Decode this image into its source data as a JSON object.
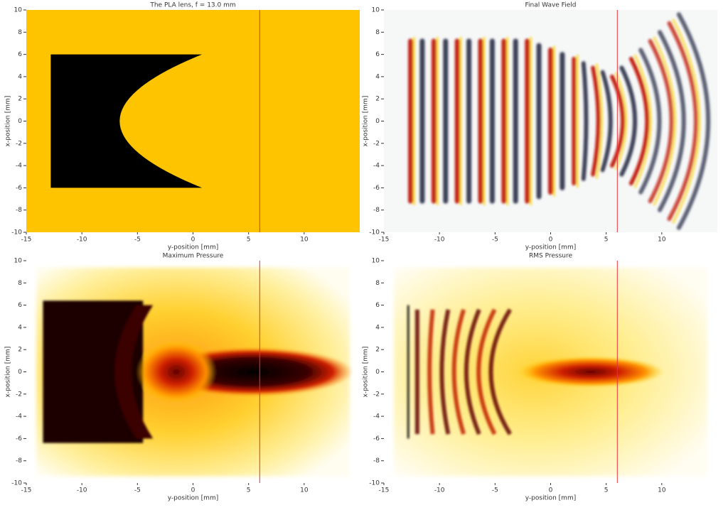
{
  "chart_data": [
    {
      "type": "heatmap",
      "title": "The PLA lens, f = 13.0 mm",
      "xlabel": "y-position [mm]",
      "ylabel": "x-position [mm]",
      "xlim": [
        -15,
        15
      ],
      "ylim": [
        -10,
        10
      ],
      "xticks": [
        -15,
        -10,
        -5,
        0,
        5,
        10
      ],
      "yticks": [
        -10,
        -8,
        -6,
        -4,
        -2,
        0,
        2,
        4,
        6,
        8,
        10
      ],
      "vline": 6,
      "vline_color": "#e8303a"
    },
    {
      "type": "heatmap",
      "title": "Final Wave Field",
      "xlabel": "y-position [mm]",
      "ylabel": "x-position [mm]",
      "xlim": [
        -15,
        15
      ],
      "ylim": [
        -10,
        10
      ],
      "xticks": [
        -15,
        -10,
        -5,
        0,
        5,
        10
      ],
      "yticks": [
        -10,
        -8,
        -6,
        -4,
        -2,
        0,
        2,
        4,
        6,
        8,
        10
      ],
      "vline": 6,
      "vline_color": "#e8303a"
    },
    {
      "type": "heatmap",
      "title": "Maximum Pressure",
      "xlabel": "y-position [mm]",
      "ylabel": "x-position [mm]",
      "xlim": [
        -15,
        15
      ],
      "ylim": [
        -10,
        10
      ],
      "xticks": [
        -15,
        -10,
        -5,
        0,
        5,
        10
      ],
      "yticks": [
        -10,
        -8,
        -6,
        -4,
        -2,
        0,
        2,
        4,
        6,
        8,
        10
      ],
      "vline": 6,
      "vline_color": "#e8303a"
    },
    {
      "type": "heatmap",
      "title": "RMS Pressure",
      "xlabel": "y-position [mm]",
      "ylabel": "x-position [mm]",
      "xlim": [
        -15,
        15
      ],
      "ylim": [
        -10,
        10
      ],
      "xticks": [
        -15,
        -10,
        -5,
        0,
        5,
        10
      ],
      "yticks": [
        -10,
        -8,
        -6,
        -4,
        -2,
        0,
        2,
        4,
        6,
        8,
        10
      ],
      "vline": 6,
      "vline_color": "#e8303a"
    }
  ]
}
